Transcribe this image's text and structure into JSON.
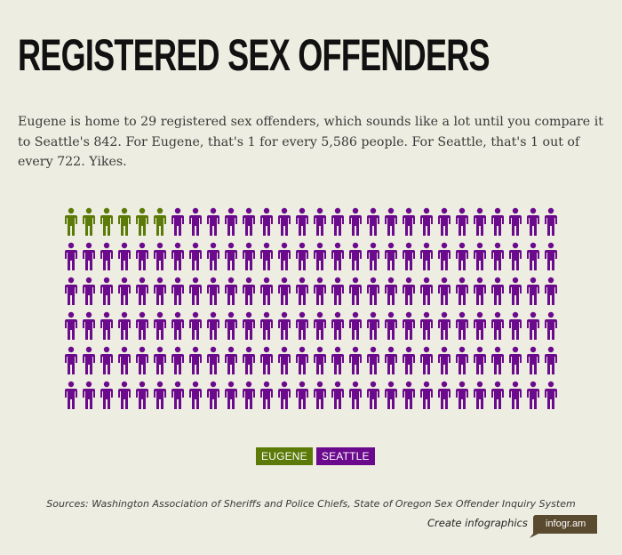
{
  "header": {
    "title": "REGISTERED SEX OFFENDERS",
    "description": "Eugene is home to 29 registered sex offenders, which sounds like a lot until you compare it to Seattle's 842. For Eugene, that's 1 for every 5,586 people. For Seattle, that's 1 out of every 722. Yikes."
  },
  "chart_data": {
    "type": "pictogram",
    "icon": "person-icon",
    "columns": 28,
    "rows": 6,
    "series": [
      {
        "name": "EUGENE",
        "icons": 6,
        "color": "#5c7a08"
      },
      {
        "name": "SEATTLE",
        "icons": 162,
        "color": "#6b0a8c"
      }
    ],
    "legend_position": "bottom-center"
  },
  "footer": {
    "sources": "Sources: Washington Association of Sheriffs and Police Chiefs, State of Oregon Sex Offender Inquiry System",
    "credit": "Create infographics",
    "badge": "infogr.am",
    "badge_color": "#5a4a30"
  }
}
